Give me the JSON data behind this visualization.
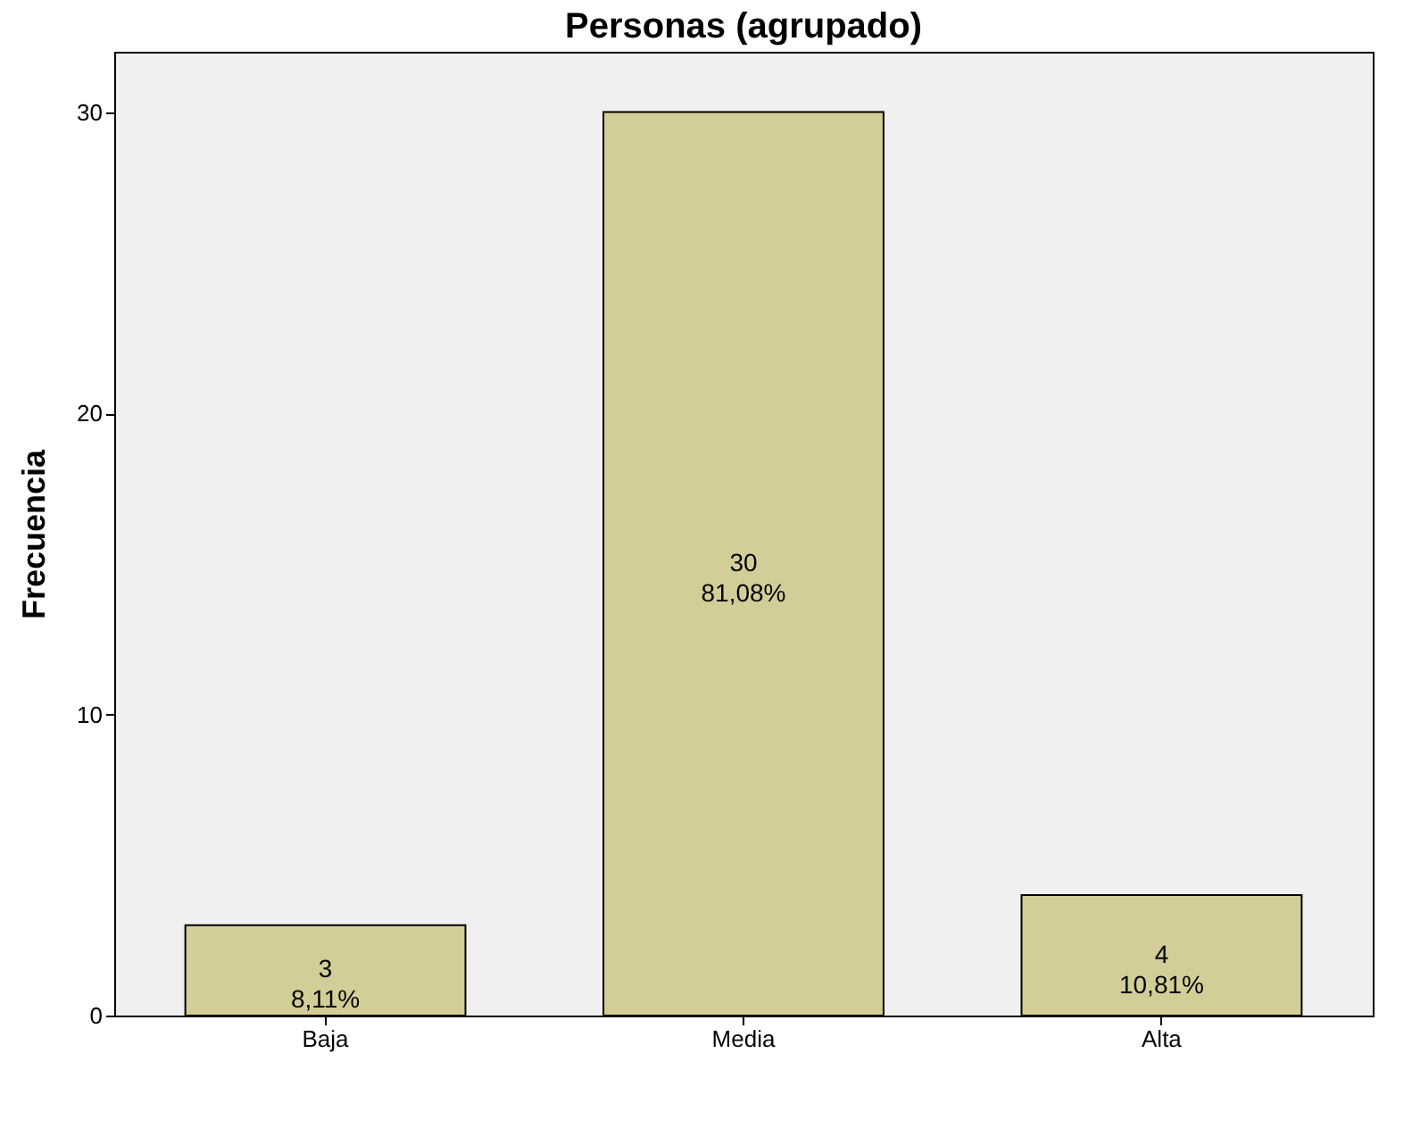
{
  "chart_data": {
    "type": "bar",
    "title": "Personas (agrupado)",
    "ylabel": "Frecuencia",
    "categories": [
      "Baja",
      "Media",
      "Alta"
    ],
    "values": [
      3,
      30,
      4
    ],
    "value_labels": [
      "3\n8,11%",
      "30\n81,08%",
      "4\n10,81%"
    ],
    "color": "#d3ce97",
    "ylim": [
      0,
      32
    ],
    "yticks": [
      0,
      10,
      20,
      30
    ],
    "grid": false
  }
}
